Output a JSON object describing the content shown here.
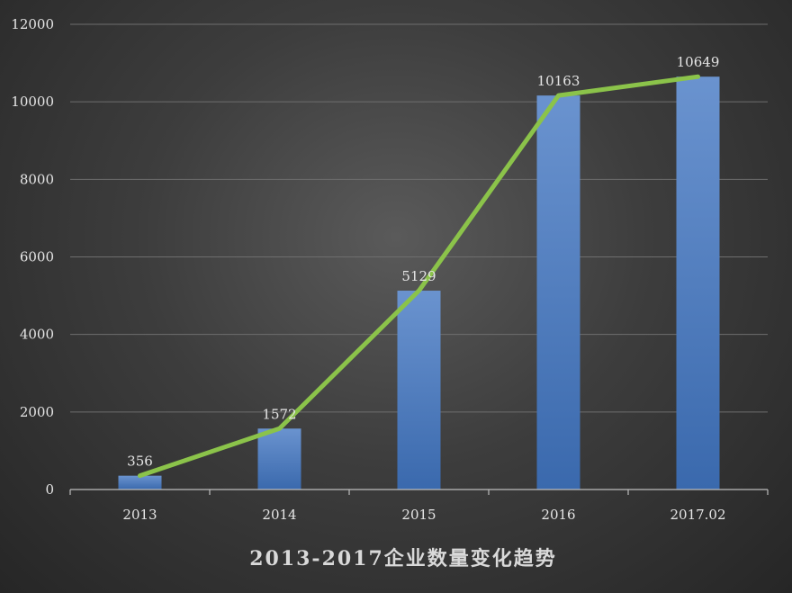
{
  "chart_data": {
    "type": "bar",
    "title": "2013-2017企业数量变化趋势",
    "xlabel": "",
    "ylabel": "",
    "categories": [
      "2013",
      "2014",
      "2015",
      "2016",
      "2017.02"
    ],
    "values": [
      356,
      1572,
      5129,
      10163,
      10649
    ],
    "data_labels": [
      "356",
      "1572",
      "5129",
      "10163",
      "10649"
    ],
    "overlay_line": {
      "type": "line",
      "values": [
        356,
        1572,
        5129,
        10163,
        10649
      ]
    },
    "ylim": [
      0,
      12000
    ],
    "yticks": [
      0,
      2000,
      4000,
      6000,
      8000,
      10000,
      12000
    ],
    "ytick_labels": [
      "0",
      "2000",
      "4000",
      "6000",
      "8000",
      "10000",
      "12000"
    ],
    "grid": true,
    "legend": "none",
    "colors": {
      "bar_top": "#6a93cf",
      "bar_bottom": "#3a69ad",
      "line": "#8bc34a",
      "grid": "#6e6e6e",
      "axis": "#bdbdbd"
    }
  }
}
